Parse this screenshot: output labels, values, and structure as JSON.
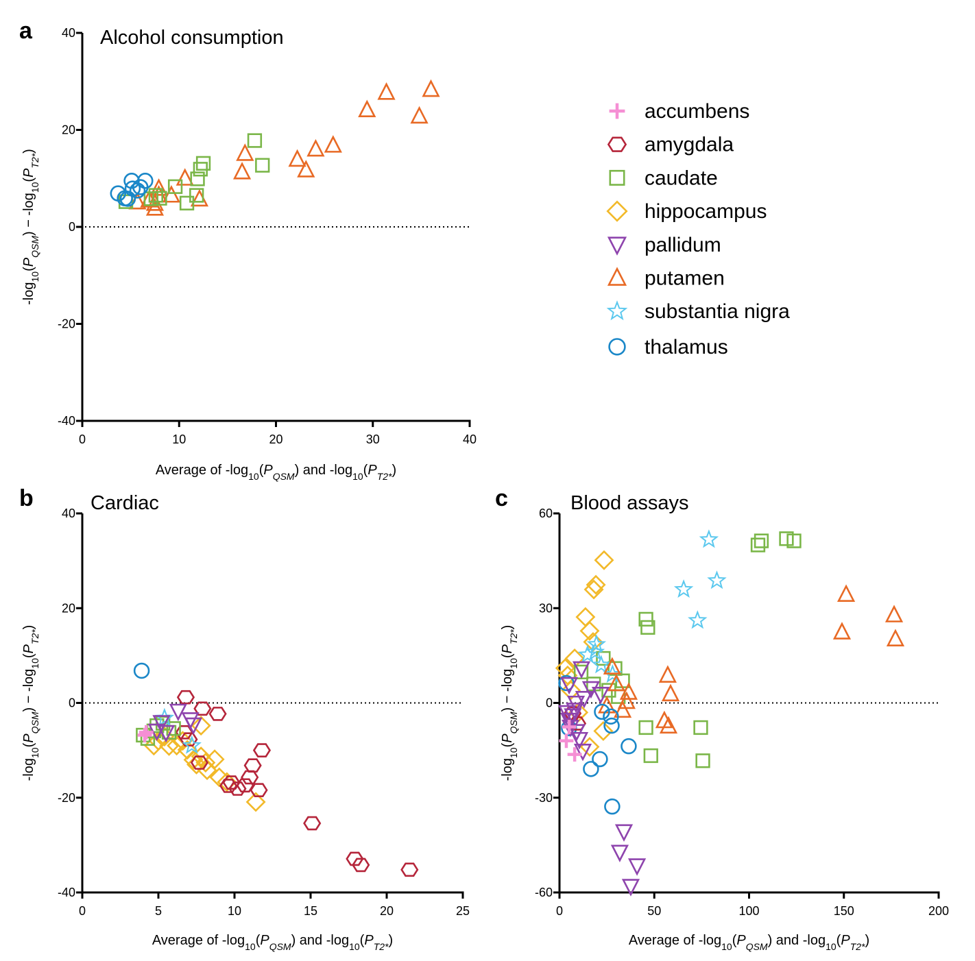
{
  "legend": {
    "entries": [
      {
        "name": "accumbens",
        "marker": "plus",
        "color": "#F58FD4"
      },
      {
        "name": "amygdala",
        "marker": "hexagon",
        "color": "#B5253A"
      },
      {
        "name": "caudate",
        "marker": "square",
        "color": "#7AB648"
      },
      {
        "name": "hippocampus",
        "marker": "diamond",
        "color": "#F2B929"
      },
      {
        "name": "pallidum",
        "marker": "triangle-down",
        "color": "#8E44AD"
      },
      {
        "name": "putamen",
        "marker": "triangle-up",
        "color": "#E86A25"
      },
      {
        "name": "substantia nigra",
        "marker": "star",
        "color": "#5BC8EE"
      },
      {
        "name": "thalamus",
        "marker": "circle",
        "color": "#1A87C8"
      }
    ]
  },
  "chart_data": [
    {
      "type": "scatter",
      "panel": "a",
      "title": "Alcohol consumption",
      "xlabel": "Average of -log10(P_QSM) and -log10(P_T2*)",
      "ylabel": "-log10(P_QSM) − -log10(P_T2*)",
      "xlim": [
        0,
        40
      ],
      "ylim": [
        -40,
        40
      ],
      "xticks": [
        0,
        10,
        20,
        30,
        40
      ],
      "yticks": [
        -40,
        -20,
        0,
        20,
        40
      ],
      "reference_line_y": 0,
      "series": [
        {
          "name": "putamen",
          "points": [
            [
              36,
              28.3
            ],
            [
              31.4,
              27.7
            ],
            [
              29.4,
              24.1
            ],
            [
              34.8,
              22.8
            ],
            [
              25.9,
              16.8
            ],
            [
              24.1,
              16
            ],
            [
              22.2,
              13.9
            ],
            [
              23.1,
              11.7
            ],
            [
              16.8,
              15.1
            ],
            [
              16.5,
              11.3
            ],
            [
              10.6,
              10
            ],
            [
              12.1,
              5.7
            ],
            [
              7.9,
              7.9
            ],
            [
              9.2,
              6.5
            ],
            [
              7.5,
              3.8
            ],
            [
              6.9,
              5.5
            ],
            [
              7.5,
              4.8
            ],
            [
              5.7,
              5.1
            ],
            [
              7.9,
              6.5
            ]
          ]
        },
        {
          "name": "caudate",
          "points": [
            [
              17.8,
              17.8
            ],
            [
              18.6,
              12.7
            ],
            [
              12.5,
              13.1
            ],
            [
              12.2,
              11.9
            ],
            [
              11.9,
              9.9
            ],
            [
              9.6,
              8.3
            ],
            [
              11.8,
              6.5
            ],
            [
              10.8,
              4.9
            ],
            [
              4.5,
              5.2
            ],
            [
              7.6,
              6.5
            ],
            [
              8,
              5.9
            ],
            [
              7.1,
              5.8
            ]
          ]
        },
        {
          "name": "thalamus",
          "points": [
            [
              3.7,
              6.9
            ],
            [
              5.1,
              9.5
            ],
            [
              6.5,
              9.5
            ],
            [
              4.4,
              5.9
            ],
            [
              4.7,
              5.8
            ],
            [
              5.7,
              7.5
            ],
            [
              5.2,
              7.9
            ],
            [
              6,
              8.2
            ]
          ]
        }
      ]
    },
    {
      "type": "scatter",
      "panel": "b",
      "title": "Cardiac",
      "xlabel": "Average of -log10(P_QSM) and -log10(P_T2*)",
      "ylabel": "-log10(P_QSM) − -log10(P_T2*)",
      "xlim": [
        0,
        25
      ],
      "ylim": [
        -40,
        40
      ],
      "xticks": [
        0,
        5,
        10,
        15,
        20,
        25
      ],
      "yticks": [
        -40,
        -20,
        0,
        20,
        40
      ],
      "reference_line_y": 0,
      "series": [
        {
          "name": "hippocampus",
          "points": [
            [
              11.4,
              -20.9
            ],
            [
              9.5,
              -16.7
            ],
            [
              9,
              -15.7
            ],
            [
              8.7,
              -11.9
            ],
            [
              8.2,
              -14.2
            ],
            [
              7.8,
              -11.3
            ],
            [
              7.5,
              -13
            ],
            [
              7.3,
              -12
            ],
            [
              6.9,
              -9.9
            ],
            [
              6.2,
              -9
            ],
            [
              5.7,
              -9.1
            ],
            [
              4.7,
              -9
            ],
            [
              7.8,
              -4.8
            ],
            [
              5,
              -8
            ],
            [
              6.6,
              -8
            ],
            [
              5.4,
              -7.1
            ],
            [
              8.1,
              -12.6
            ]
          ]
        },
        {
          "name": "amygdala",
          "points": [
            [
              21.5,
              -35.2
            ],
            [
              18.3,
              -34.2
            ],
            [
              17.9,
              -32.9
            ],
            [
              15.1,
              -25.4
            ],
            [
              11.8,
              -10
            ],
            [
              11.2,
              -13.2
            ],
            [
              11.6,
              -18.4
            ],
            [
              11,
              -15.7
            ],
            [
              10.7,
              -17.4
            ],
            [
              10.2,
              -18.1
            ],
            [
              9.8,
              -16.8
            ],
            [
              9.6,
              -17.5
            ],
            [
              6.8,
              1.2
            ],
            [
              7.9,
              -1.2
            ],
            [
              8.9,
              -2.3
            ],
            [
              7.7,
              -12.6
            ],
            [
              7,
              -7.7
            ],
            [
              6.7,
              -6.2
            ]
          ]
        },
        {
          "name": "caudate",
          "points": [
            [
              4,
              -6.8
            ],
            [
              4.3,
              -7.5
            ],
            [
              4.9,
              -4.8
            ],
            [
              6,
              -5.4
            ],
            [
              5.7,
              -6.2
            ],
            [
              4.7,
              -5.9
            ],
            [
              5.3,
              -4.3
            ]
          ]
        },
        {
          "name": "substantia nigra",
          "points": [
            [
              7.2,
              -9
            ],
            [
              5.4,
              -3.2
            ]
          ]
        },
        {
          "name": "pallidum",
          "points": [
            [
              6.3,
              -1.7
            ],
            [
              7.1,
              -3.5
            ],
            [
              7.3,
              -4.6
            ],
            [
              5.2,
              -4.1
            ],
            [
              4.9,
              -5.9
            ],
            [
              5.5,
              -6.2
            ]
          ]
        },
        {
          "name": "accumbens",
          "points": [
            [
              4.1,
              -6.8
            ],
            [
              4.2,
              -6.2
            ]
          ]
        },
        {
          "name": "thalamus",
          "points": [
            [
              3.9,
              6.8
            ]
          ]
        }
      ]
    },
    {
      "type": "scatter",
      "panel": "c",
      "title": "Blood assays",
      "xlabel": "Average of -log10(P_QSM) and -log10(P_T2*)",
      "ylabel": "-log10(P_QSM) − -log10(P_T2*)",
      "xlim": [
        0,
        200
      ],
      "ylim": [
        -60,
        60
      ],
      "xticks": [
        0,
        50,
        100,
        150,
        200
      ],
      "yticks": [
        -60,
        -30,
        0,
        30,
        60
      ],
      "reference_line_y": 0,
      "series": [
        {
          "name": "hippocampus",
          "points": [
            [
              23.5,
              45.2
            ],
            [
              19.2,
              37.4
            ],
            [
              18.1,
              35.9
            ],
            [
              13.7,
              27.2
            ],
            [
              15.9,
              22.8
            ],
            [
              17.7,
              19.3
            ],
            [
              8,
              14.1
            ],
            [
              4.3,
              8.7
            ],
            [
              23.1,
              -8.9
            ],
            [
              15.9,
              -13.9
            ],
            [
              6,
              4
            ],
            [
              10,
              -3
            ],
            [
              3,
              11
            ]
          ]
        },
        {
          "name": "caudate",
          "points": [
            [
              123.7,
              51.3
            ],
            [
              119.7,
              52
            ],
            [
              106.5,
              51.3
            ],
            [
              104.7,
              50
            ],
            [
              45.6,
              26.5
            ],
            [
              46.6,
              23.9
            ],
            [
              45.6,
              -7.8
            ],
            [
              48.2,
              -16.7
            ],
            [
              74.5,
              -7.8
            ],
            [
              75.6,
              -18.3
            ],
            [
              29.3,
              10.9
            ],
            [
              33.3,
              7
            ],
            [
              23.1,
              14.1
            ],
            [
              11.4,
              9.8
            ],
            [
              18,
              6
            ],
            [
              26,
              4
            ],
            [
              31,
              2
            ]
          ]
        },
        {
          "name": "substantia nigra",
          "points": [
            [
              78.8,
              51.7
            ],
            [
              83,
              38.7
            ],
            [
              65.5,
              35.9
            ],
            [
              72.8,
              26.1
            ],
            [
              19.5,
              18.5
            ],
            [
              18.8,
              16.1
            ],
            [
              14.8,
              15.2
            ],
            [
              22,
              12
            ],
            [
              28,
              9
            ]
          ]
        },
        {
          "name": "putamen",
          "points": [
            [
              151.2,
              34.3
            ],
            [
              176.5,
              27.8
            ],
            [
              149,
              22.4
            ],
            [
              177.2,
              20.2
            ],
            [
              57.1,
              8.7
            ],
            [
              58.6,
              2.8
            ],
            [
              55.3,
              -5.7
            ],
            [
              57.5,
              -7.4
            ],
            [
              27.8,
              11.3
            ],
            [
              36.5,
              3.3
            ],
            [
              35.4,
              0.4
            ],
            [
              33.3,
              -2.4
            ],
            [
              30,
              6
            ],
            [
              25,
              -1
            ]
          ]
        },
        {
          "name": "thalamus",
          "points": [
            [
              36.5,
              -13.7
            ],
            [
              21.3,
              -17.8
            ],
            [
              16.6,
              -20.9
            ],
            [
              27.8,
              -32.8
            ],
            [
              27.5,
              -7.2
            ],
            [
              22.4,
              -2.8
            ],
            [
              27.1,
              -4.3
            ],
            [
              3.6,
              6.3
            ],
            [
              5,
              -8
            ]
          ]
        },
        {
          "name": "amygdala",
          "points": [
            [
              6.9,
              -3.3
            ],
            [
              9.4,
              -6.5
            ]
          ]
        },
        {
          "name": "pallidum",
          "points": [
            [
              34,
              -40.7
            ],
            [
              31.8,
              -47.2
            ],
            [
              40.9,
              -51.5
            ],
            [
              37.6,
              -58
            ],
            [
              16.6,
              4.6
            ],
            [
              11.6,
              10.9
            ],
            [
              5.1,
              5.9
            ],
            [
              21.7,
              2.8
            ],
            [
              13,
              1.5
            ],
            [
              8,
              -2.2
            ],
            [
              5.1,
              -5.4
            ],
            [
              10.5,
              -11.5
            ],
            [
              12.3,
              -15.2
            ],
            [
              5.8,
              -7.6
            ],
            [
              8.7,
              0
            ],
            [
              7,
              -4
            ],
            [
              9,
              -9
            ],
            [
              4,
              -3
            ]
          ]
        },
        {
          "name": "accumbens",
          "points": [
            [
              8,
              -16.3
            ],
            [
              3.6,
              -12
            ],
            [
              5.1,
              -7.6
            ]
          ]
        }
      ]
    }
  ]
}
